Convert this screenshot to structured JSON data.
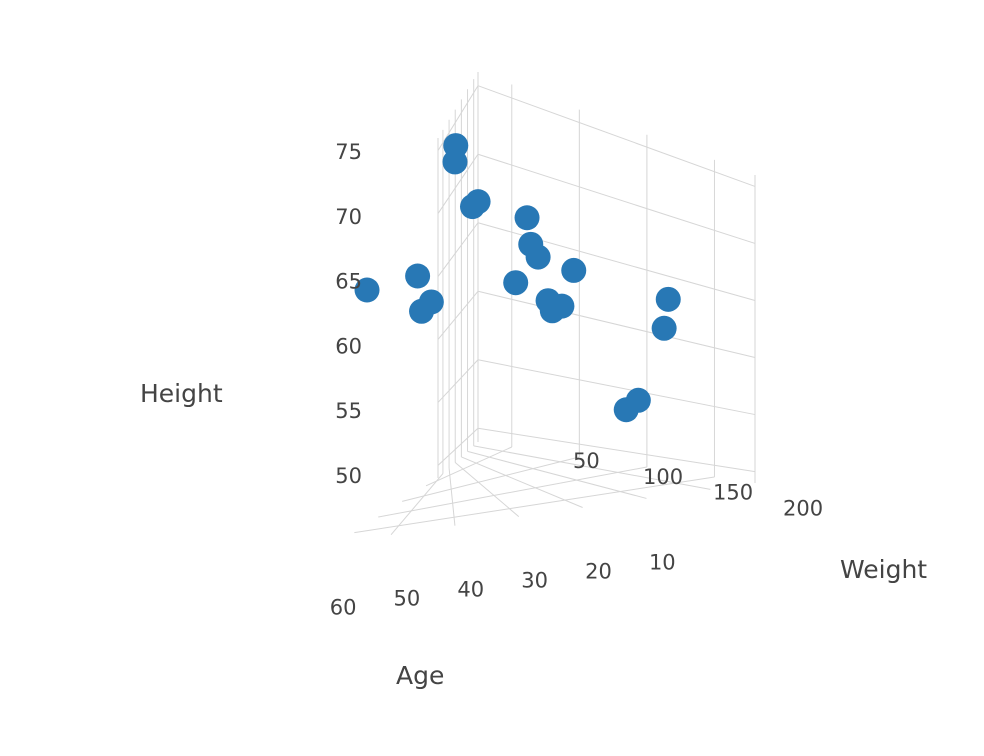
{
  "chart_data": {
    "type": "scatter3d",
    "title": "",
    "axes": {
      "x": {
        "title": "Weight",
        "ticks": [
          50,
          100,
          150,
          200
        ],
        "range": [
          25,
          230
        ]
      },
      "y": {
        "title": "Age",
        "ticks": [
          10,
          20,
          30,
          40,
          50,
          60
        ],
        "range": [
          3,
          68
        ]
      },
      "z": {
        "title": "Height",
        "ticks": [
          50,
          55,
          60,
          65,
          70,
          75
        ],
        "range": [
          49,
          76
        ]
      }
    },
    "grid": true,
    "marker_color": "#2878b5",
    "points": [
      {
        "weight": 210,
        "age": 65,
        "height": 72
      },
      {
        "weight": 160,
        "age": 58,
        "height": 70
      },
      {
        "weight": 125,
        "age": 56,
        "height": 66
      },
      {
        "weight": 140,
        "age": 58,
        "height": 66
      },
      {
        "weight": 55,
        "age": 46,
        "height": 75
      },
      {
        "weight": 80,
        "age": 48,
        "height": 75
      },
      {
        "weight": 125,
        "age": 44,
        "height": 73
      },
      {
        "weight": 120,
        "age": 42,
        "height": 73
      },
      {
        "weight": 150,
        "age": 32,
        "height": 72
      },
      {
        "weight": 175,
        "age": 34,
        "height": 71
      },
      {
        "weight": 180,
        "age": 33,
        "height": 70
      },
      {
        "weight": 215,
        "age": 30,
        "height": 70
      },
      {
        "weight": 220,
        "age": 34,
        "height": 67
      },
      {
        "weight": 180,
        "age": 31,
        "height": 66
      },
      {
        "weight": 195,
        "age": 30,
        "height": 66
      },
      {
        "weight": 95,
        "age": 25,
        "height": 64
      },
      {
        "weight": 220,
        "age": 15,
        "height": 66
      },
      {
        "weight": 190,
        "age": 10,
        "height": 62
      },
      {
        "weight": 160,
        "age": 8,
        "height": 55
      },
      {
        "weight": 150,
        "age": 8,
        "height": 54
      }
    ]
  }
}
